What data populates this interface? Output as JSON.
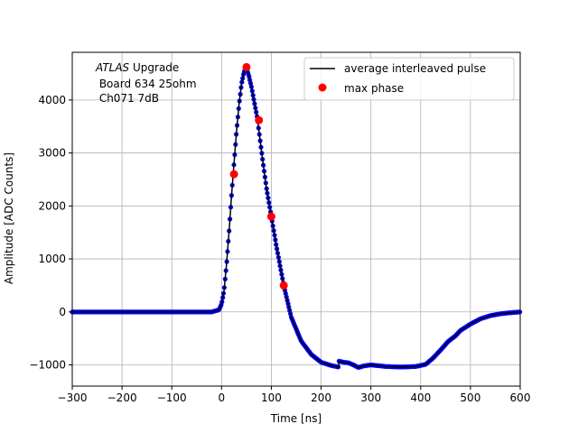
{
  "chart_data": {
    "type": "scatter",
    "xlabel": "Time [ns]",
    "ylabel": "Amplitude [ADC Counts]",
    "xlim": [
      -300,
      600
    ],
    "ylim": [
      -1400,
      4900
    ],
    "xticks": [
      -300,
      -200,
      -100,
      0,
      100,
      200,
      300,
      400,
      500,
      600
    ],
    "yticks": [
      -1000,
      0,
      1000,
      2000,
      3000,
      4000
    ],
    "xtick_labels": [
      "−300",
      "−200",
      "−100",
      "0",
      "100",
      "200",
      "300",
      "400",
      "500",
      "600"
    ],
    "ytick_labels": [
      "−1000",
      "0",
      "1000",
      "2000",
      "3000",
      "4000"
    ],
    "grid": true,
    "legend_position": "top-right",
    "annotation": {
      "title_italic": "ATLAS",
      "title_rest": " Upgrade",
      "line2": " Board 634 25ohm",
      "line3": " Ch071 7dB"
    },
    "series": [
      {
        "name": "average interleaved pulse",
        "style": "line",
        "color": "#000000",
        "points": [
          [
            -300,
            0
          ],
          [
            -200,
            0
          ],
          [
            -100,
            0
          ],
          [
            -20,
            0
          ],
          [
            -5,
            40
          ],
          [
            0,
            150
          ],
          [
            5,
            400
          ],
          [
            10,
            900
          ],
          [
            15,
            1500
          ],
          [
            20,
            2200
          ],
          [
            25,
            2800
          ],
          [
            30,
            3400
          ],
          [
            35,
            3900
          ],
          [
            40,
            4300
          ],
          [
            45,
            4530
          ],
          [
            50,
            4600
          ],
          [
            55,
            4450
          ],
          [
            60,
            4250
          ],
          [
            65,
            4000
          ],
          [
            72,
            3650
          ],
          [
            80,
            3050
          ],
          [
            90,
            2350
          ],
          [
            100,
            1800
          ],
          [
            110,
            1250
          ],
          [
            125,
            500
          ],
          [
            140,
            -100
          ],
          [
            160,
            -550
          ],
          [
            180,
            -800
          ],
          [
            200,
            -950
          ],
          [
            220,
            -1010
          ],
          [
            235,
            -1040
          ],
          [
            236,
            -930
          ],
          [
            245,
            -950
          ],
          [
            255,
            -960
          ],
          [
            265,
            -1000
          ],
          [
            275,
            -1050
          ],
          [
            285,
            -1020
          ],
          [
            300,
            -1000
          ],
          [
            330,
            -1030
          ],
          [
            360,
            -1040
          ],
          [
            390,
            -1030
          ],
          [
            410,
            -990
          ],
          [
            425,
            -870
          ],
          [
            440,
            -720
          ],
          [
            455,
            -560
          ],
          [
            470,
            -450
          ],
          [
            480,
            -350
          ],
          [
            500,
            -230
          ],
          [
            520,
            -130
          ],
          [
            540,
            -70
          ],
          [
            560,
            -35
          ],
          [
            580,
            -15
          ],
          [
            600,
            0
          ]
        ]
      },
      {
        "name": "",
        "style": "scatter",
        "color": "#0000ff",
        "points_from_series": 0
      },
      {
        "name": "max phase",
        "style": "scatter",
        "color": "#ff0000",
        "points": [
          [
            25,
            2600
          ],
          [
            50,
            4620
          ],
          [
            75,
            3620
          ],
          [
            100,
            1800
          ],
          [
            125,
            500
          ]
        ]
      }
    ]
  }
}
